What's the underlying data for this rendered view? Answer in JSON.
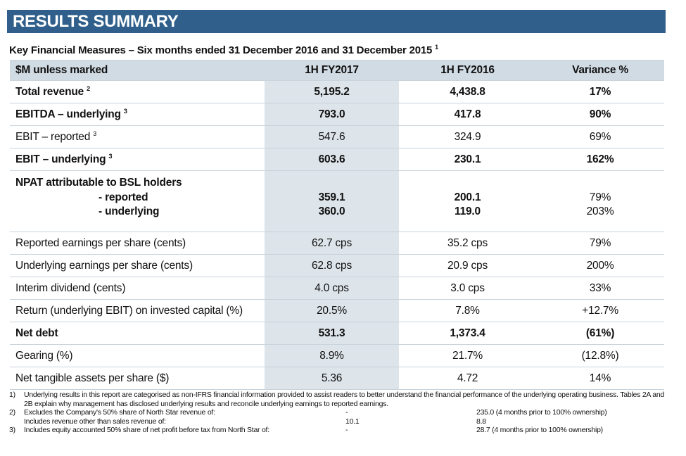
{
  "banner": {
    "title": "RESULTS SUMMARY"
  },
  "subtitle": {
    "text": "Key Financial Measures – Six months ended 31 December 2016 and 31 December 2015",
    "sup": "1"
  },
  "table": {
    "headers": [
      "$M unless marked",
      "1H FY2017",
      "1H FY2016",
      "Variance %"
    ],
    "rows": [
      {
        "label": "Total revenue",
        "sup": "2",
        "v2017": "5,195.2",
        "v2016": "4,438.8",
        "var": "17%",
        "bold": true
      },
      {
        "label": "EBITDA – underlying",
        "sup": "3",
        "v2017": "793.0",
        "v2016": "417.8",
        "var": "90%",
        "bold": true
      },
      {
        "label": "EBIT – reported",
        "sup": "3",
        "v2017": "547.6",
        "v2016": "324.9",
        "var": "69%",
        "bold": false
      },
      {
        "label": "EBIT – underlying",
        "sup": "3",
        "v2017": "603.6",
        "v2016": "230.1",
        "var": "162%",
        "bold": true
      },
      {
        "label": "Reported earnings per share (cents)",
        "v2017": "62.7 cps",
        "v2016": "35.2 cps",
        "var": "79%",
        "bold": false
      },
      {
        "label": "Underlying earnings per share (cents)",
        "v2017": "62.8 cps",
        "v2016": "20.9 cps",
        "var": "200%",
        "bold": false
      },
      {
        "label": "Interim dividend (cents)",
        "v2017": "4.0 cps",
        "v2016": "3.0 cps",
        "var": "33%",
        "bold": false
      },
      {
        "label": "Return (underlying EBIT) on invested capital (%)",
        "v2017": "20.5%",
        "v2016": "7.8%",
        "var": "+12.7%",
        "bold": false
      },
      {
        "label": "Net debt",
        "v2017": "531.3",
        "v2016": "1,373.4",
        "var": "(61%)",
        "bold": true
      },
      {
        "label": "Gearing (%)",
        "v2017": "8.9%",
        "v2016": "21.7%",
        "var": "(12.8%)",
        "bold": false
      },
      {
        "label": "Net tangible assets per share ($)",
        "v2017": "5.36",
        "v2016": "4.72",
        "var": "14%",
        "bold": false
      }
    ],
    "npat": {
      "title": "NPAT attributable to BSL holders",
      "reported_label": "- reported",
      "underlying_label": "- underlying",
      "reported": {
        "v2017": "359.1",
        "v2016": "200.1",
        "var": "79%"
      },
      "underlying": {
        "v2017": "360.0",
        "v2016": "119.0",
        "var": "203%"
      }
    }
  },
  "notes": {
    "n1": {
      "num": "1)",
      "text": "Underlying results in this report are categorised as non-IFRS financial information provided to assist readers to better understand the financial performance of the underlying operating business. Tables 2A and 2B explain why management has disclosed underlying results and reconcile underlying earnings to reported earnings."
    },
    "n2": {
      "num": "2)",
      "text": "Excludes the Company's 50% share of North Star revenue of:",
      "mid": "-",
      "right": "235.0 (4 months prior to 100% ownership)"
    },
    "n2b": {
      "text": "Includes revenue other than sales revenue of:",
      "mid": "10.1",
      "right": "8.8"
    },
    "n3": {
      "num": "3)",
      "text": "Includes equity accounted 50% share of net profit before tax from North Star of:",
      "mid": "-",
      "right": "28.7 (4 months prior to 100% ownership)"
    }
  }
}
